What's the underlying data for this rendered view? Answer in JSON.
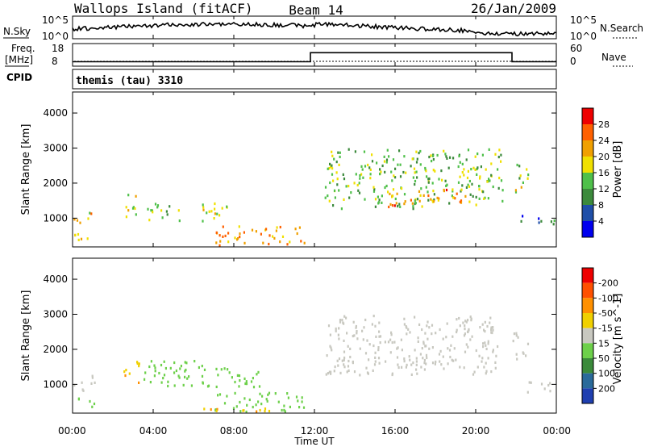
{
  "header": {
    "station": "Wallops Island (fitACF)",
    "beam": "Beam 14",
    "date": "26/Jan/2009"
  },
  "top_panel": {
    "left_label": "N.Sky",
    "right_label": "N.Search",
    "left_ticks": [
      "10^5",
      "10^0"
    ],
    "right_ticks": [
      "10^5",
      "10^0"
    ]
  },
  "freq_panel": {
    "left_label_1": "Freq.",
    "left_label_2": "[MHz]",
    "left_ticks": [
      "18",
      "8"
    ],
    "right_label": "Nave",
    "right_ticks": [
      "60",
      "0"
    ],
    "freq_steps": [
      {
        "t": 0.0,
        "v": 10.5
      },
      {
        "t": 11.8,
        "v": 15.6
      },
      {
        "t": 21.8,
        "v": 10.5
      },
      {
        "t": 24.0,
        "v": 10.5
      }
    ]
  },
  "cpid": {
    "label": "CPID",
    "text": "themis (tau) 3310"
  },
  "x_axis": {
    "label": "Time UT",
    "ticks": [
      "00:00",
      "04:00",
      "08:00",
      "12:00",
      "16:00",
      "20:00",
      "00:00"
    ],
    "range": [
      0,
      24
    ]
  },
  "chart_data": [
    {
      "type": "heatmap",
      "name": "power",
      "ylabel": "Slant Range [km]",
      "yticks": [
        "1000",
        "2000",
        "3000",
        "4000"
      ],
      "ylim": [
        180,
        4600
      ],
      "xlim": [
        0,
        24
      ],
      "colorbar_label": "Power [dB]",
      "colorbar_ticks": [
        "4",
        "8",
        "12",
        "16",
        "20",
        "24",
        "28"
      ],
      "colorbar_colors": [
        "#0000ee",
        "#1f4fa8",
        "#3c8a3c",
        "#4fc04a",
        "#f0e000",
        "#f0a000",
        "#ff6000",
        "#ee0000"
      ],
      "echo_regions": [
        {
          "t0": 0.0,
          "t1": 1.1,
          "r0": 330,
          "r1": 640,
          "level": 20
        },
        {
          "t0": 0.0,
          "t1": 1.1,
          "r0": 850,
          "r1": 1280,
          "level": 20
        },
        {
          "t0": 2.5,
          "t1": 3.3,
          "r0": 1050,
          "r1": 1700,
          "level": 18
        },
        {
          "t0": 3.5,
          "t1": 5.3,
          "r0": 950,
          "r1": 1450,
          "level": 15
        },
        {
          "t0": 6.3,
          "t1": 8.0,
          "r0": 950,
          "r1": 1500,
          "level": 17
        },
        {
          "t0": 7.0,
          "t1": 11.5,
          "r0": 250,
          "r1": 800,
          "level": 22
        },
        {
          "t0": 12.5,
          "t1": 21.3,
          "r0": 1300,
          "r1": 3000,
          "level": 14
        },
        {
          "t0": 15.5,
          "t1": 19.5,
          "r0": 1350,
          "r1": 1850,
          "level": 24
        },
        {
          "t0": 21.8,
          "t1": 22.6,
          "r0": 1750,
          "r1": 2600,
          "level": 16
        },
        {
          "t0": 22.2,
          "t1": 24.0,
          "r0": 800,
          "r1": 1100,
          "level": 8
        }
      ]
    },
    {
      "type": "heatmap",
      "name": "velocity",
      "ylabel": "Slant Range [km]",
      "yticks": [
        "1000",
        "2000",
        "3000",
        "4000"
      ],
      "ylim": [
        180,
        4600
      ],
      "xlim": [
        0,
        24
      ],
      "colorbar_label": "Velocity [m s^-1]",
      "colorbar_ticks": [
        "200",
        "100",
        "50",
        "15",
        "-15",
        "-50",
        "-100",
        "-200"
      ],
      "colorbar_colors": [
        "#1f3fb0",
        "#2a6a9a",
        "#3a8a3a",
        "#6dd04a",
        "#c8c8c0",
        "#f0d000",
        "#ff9000",
        "#ff5000",
        "#ee0000"
      ],
      "echo_regions": [
        {
          "t0": 0.0,
          "t1": 1.1,
          "r0": 330,
          "r1": 640,
          "level": 30
        },
        {
          "t0": 0.0,
          "t1": 1.1,
          "r0": 850,
          "r1": 1300,
          "level": 0
        },
        {
          "t0": 2.5,
          "t1": 3.3,
          "r0": 1050,
          "r1": 1700,
          "level": -40
        },
        {
          "t0": 3.5,
          "t1": 6.5,
          "r0": 950,
          "r1": 1750,
          "level": 30
        },
        {
          "t0": 6.3,
          "t1": 9.3,
          "r0": 950,
          "r1": 1500,
          "level": 30
        },
        {
          "t0": 7.0,
          "t1": 11.5,
          "r0": 250,
          "r1": 800,
          "level": 30
        },
        {
          "t0": 4.0,
          "t1": 10.0,
          "r0": 180,
          "r1": 350,
          "level": -40
        },
        {
          "t0": 12.5,
          "t1": 21.3,
          "r0": 1300,
          "r1": 3000,
          "level": 0
        },
        {
          "t0": 21.8,
          "t1": 22.6,
          "r0": 1750,
          "r1": 2600,
          "level": 0
        },
        {
          "t0": 22.2,
          "t1": 24.0,
          "r0": 800,
          "r1": 1100,
          "level": 0
        }
      ]
    }
  ]
}
